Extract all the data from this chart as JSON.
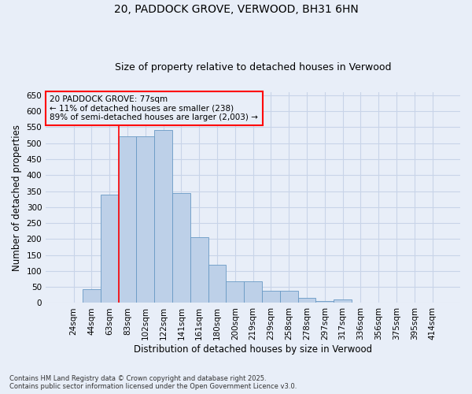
{
  "title1": "20, PADDOCK GROVE, VERWOOD, BH31 6HN",
  "title2": "Size of property relative to detached houses in Verwood",
  "xlabel": "Distribution of detached houses by size in Verwood",
  "ylabel": "Number of detached properties",
  "categories": [
    "24sqm",
    "44sqm",
    "63sqm",
    "83sqm",
    "102sqm",
    "122sqm",
    "141sqm",
    "161sqm",
    "180sqm",
    "200sqm",
    "219sqm",
    "239sqm",
    "258sqm",
    "278sqm",
    "297sqm",
    "317sqm",
    "336sqm",
    "356sqm",
    "375sqm",
    "395sqm",
    "414sqm"
  ],
  "values": [
    2,
    43,
    338,
    521,
    522,
    540,
    345,
    207,
    120,
    68,
    68,
    38,
    37,
    17,
    6,
    10,
    2,
    1,
    0,
    1,
    1
  ],
  "bar_color": "#bdd0e8",
  "bar_edge_color": "#6899c4",
  "vline_x_index": 2.5,
  "vline_color": "red",
  "annotation_text": "20 PADDOCK GROVE: 77sqm\n← 11% of detached houses are smaller (238)\n89% of semi-detached houses are larger (2,003) →",
  "annotation_box_color": "red",
  "ylim": [
    0,
    660
  ],
  "yticks": [
    0,
    50,
    100,
    150,
    200,
    250,
    300,
    350,
    400,
    450,
    500,
    550,
    600,
    650
  ],
  "background_color": "#e8eef8",
  "plot_bg_color": "#dde6f5",
  "footer_text": "Contains HM Land Registry data © Crown copyright and database right 2025.\nContains public sector information licensed under the Open Government Licence v3.0.",
  "grid_color": "#c8d4e8",
  "title_fontsize": 10,
  "subtitle_fontsize": 9,
  "axis_label_fontsize": 8.5,
  "tick_fontsize": 7.5,
  "annotation_fontsize": 7.5
}
